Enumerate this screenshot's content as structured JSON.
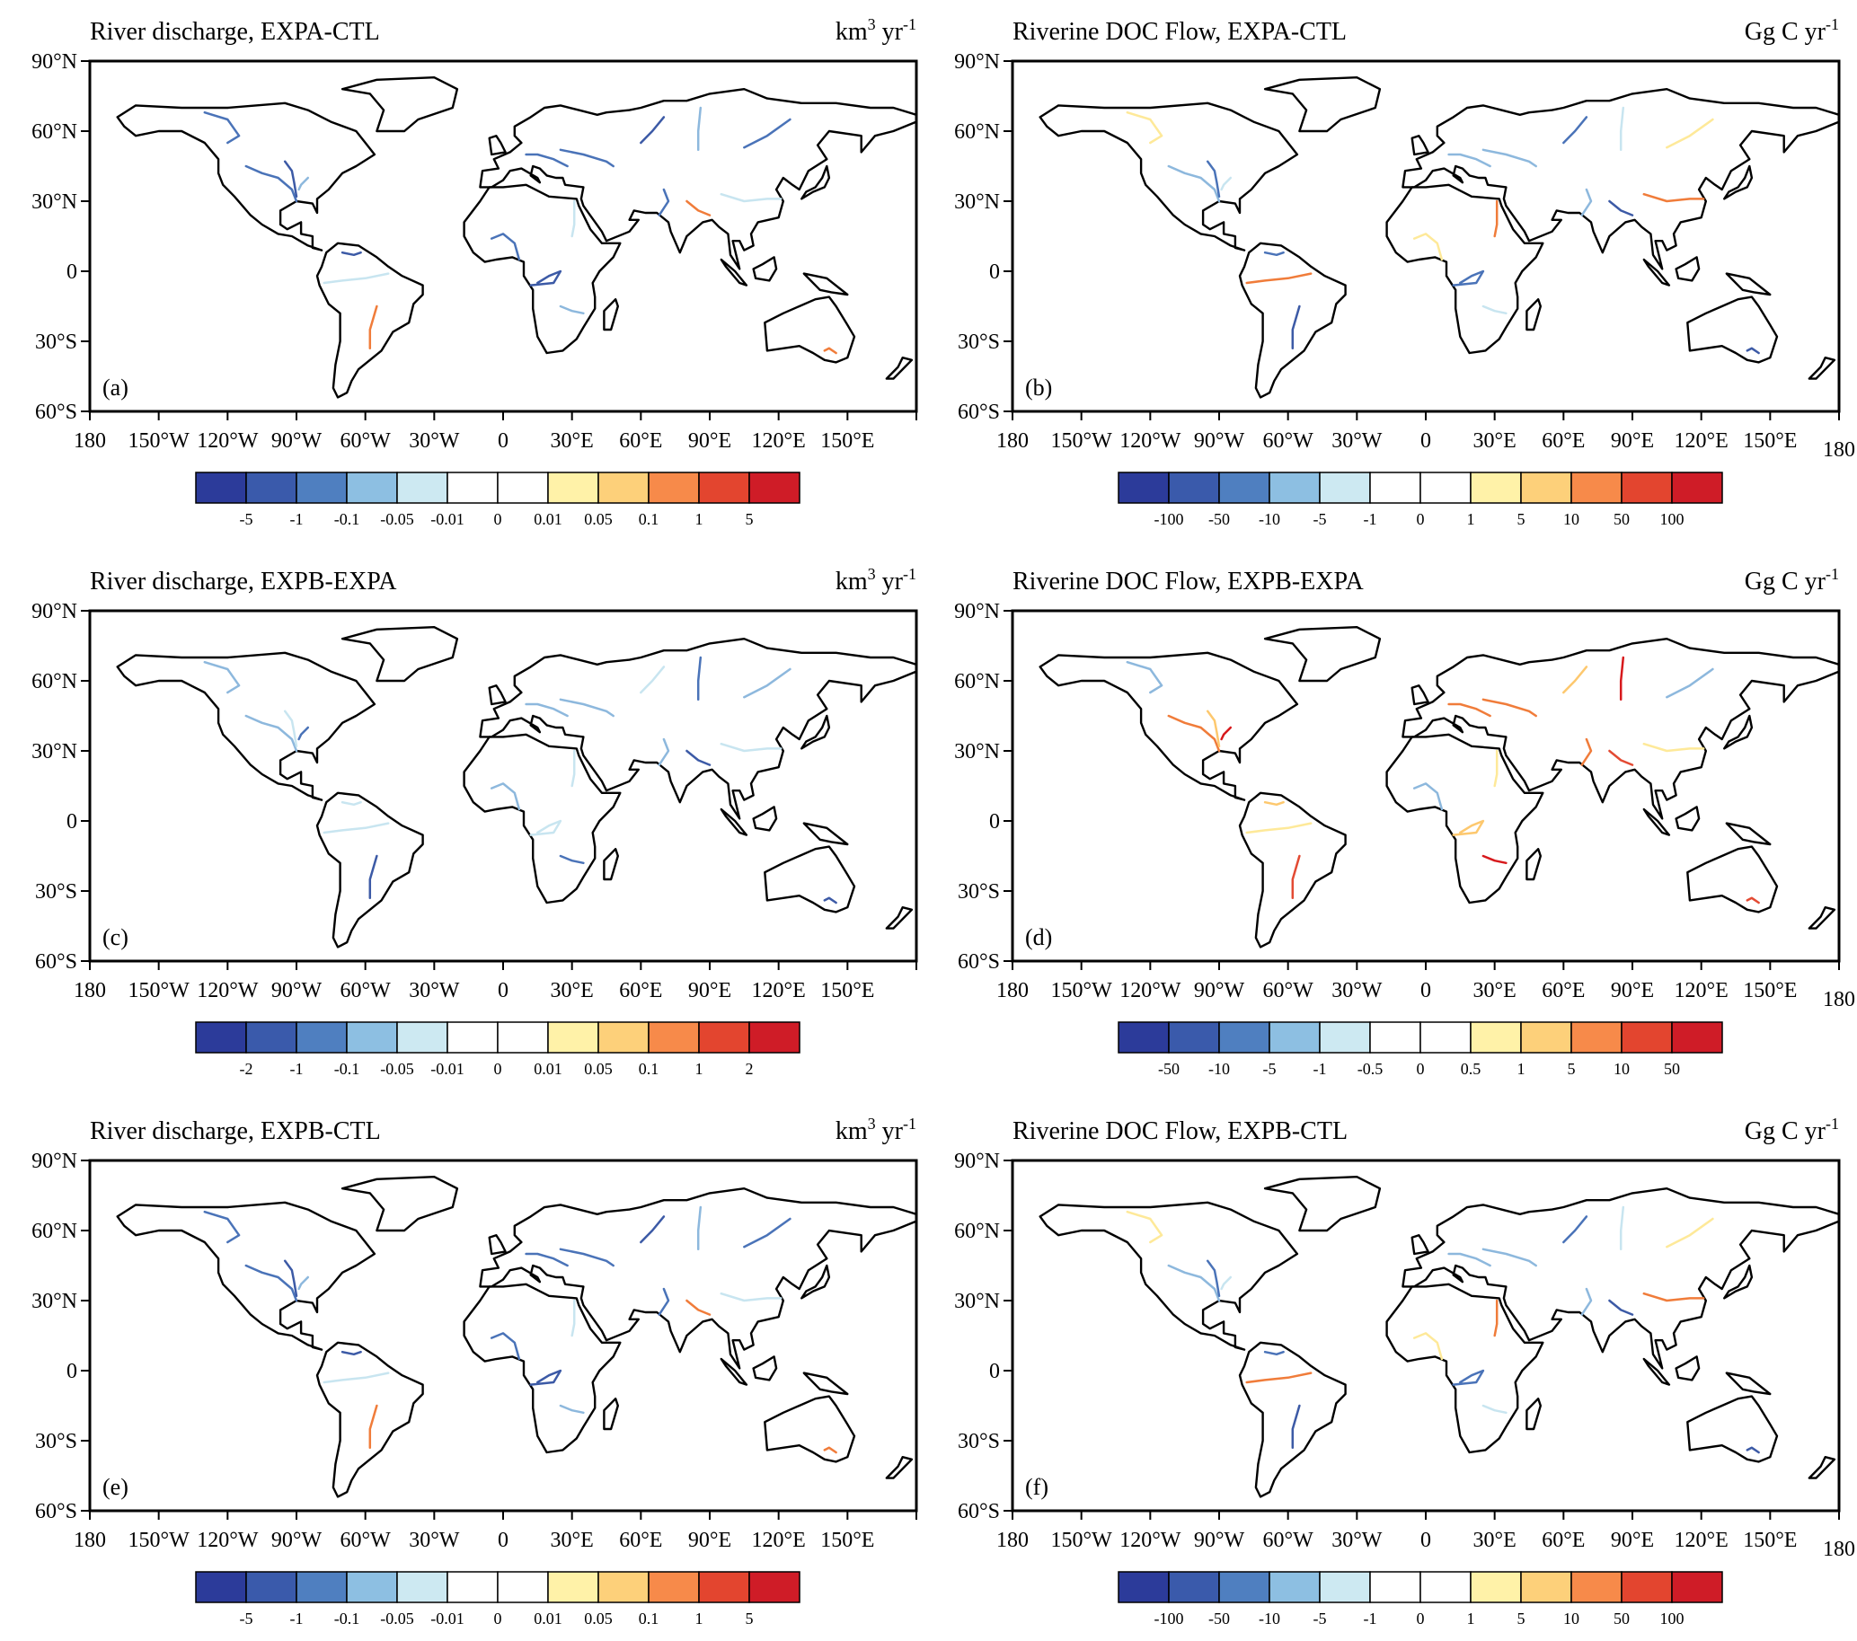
{
  "figure": {
    "panels": [
      {
        "id": "a",
        "letter": "(a)",
        "title": "River discharge, EXPA-CTL",
        "units": {
          "base": "km",
          "sup": "3",
          "rest": " yr",
          "sup2": "-1"
        },
        "lat_labels": [
          "90°N",
          "60°N",
          "30°N",
          "0",
          "30°S",
          "60°S"
        ],
        "lon_labels": [
          "180",
          "150°W",
          "120°W",
          "90°W",
          "60°W",
          "30°W",
          "0",
          "30°E",
          "60°E",
          "90°E",
          "120°E",
          "150°E"
        ],
        "colorbar_labels": [
          "-5",
          "-1",
          "-0.1",
          "-0.05",
          "-0.01",
          "0",
          "0.01",
          "0.05",
          "0.1",
          "1",
          "5"
        ],
        "river_colors": [
          "#4a73b8",
          "#3c5aa6",
          "#8db8dd",
          "#4a73b8",
          "#c8e5f0",
          "#f07c3a"
        ]
      },
      {
        "id": "b",
        "letter": "(b)",
        "title": "Riverine DOC Flow, EXPA-CTL",
        "units": {
          "base": "Gg C yr",
          "sup": "-1",
          "rest": "",
          "sup2": ""
        },
        "lat_labels": [
          "90°N",
          "60°N",
          "30°N",
          "0",
          "30°S",
          "60°S"
        ],
        "lon_labels": [
          "180",
          "150°W",
          "120°W",
          "90°W",
          "60°W",
          "30°W",
          "0",
          "30°E",
          "60°E",
          "90°E",
          "120°E",
          "150°E",
          "180"
        ],
        "colorbar_labels": [
          "-100",
          "-50",
          "-10",
          "-5",
          "-1",
          "0",
          "1",
          "5",
          "10",
          "50",
          "100"
        ],
        "river_colors": [
          "#8db8dd",
          "#4a73b8",
          "#c8e5f0",
          "#fee999",
          "#f07c3a",
          "#3c5aa6"
        ]
      },
      {
        "id": "c",
        "letter": "(c)",
        "title": "River discharge, EXPB-EXPA",
        "units": {
          "base": "km",
          "sup": "3",
          "rest": " yr",
          "sup2": "-1"
        },
        "lat_labels": [
          "90°N",
          "60°N",
          "30°N",
          "0",
          "30°S",
          "60°S"
        ],
        "lon_labels": [
          "180",
          "150°W",
          "120°W",
          "90°W",
          "60°W",
          "30°W",
          "0",
          "30°E",
          "60°E",
          "90°E",
          "120°E",
          "150°E"
        ],
        "colorbar_labels": [
          "-2",
          "-1",
          "-0.1",
          "-0.05",
          "-0.01",
          "0",
          "0.01",
          "0.05",
          "0.1",
          "1",
          "2"
        ],
        "river_colors": [
          "#8db8dd",
          "#c8e5f0",
          "#4a73b8",
          "#8db8dd",
          "#c8e5f0",
          "#3c5aa6"
        ]
      },
      {
        "id": "d",
        "letter": "(d)",
        "title": "Riverine DOC Flow, EXPB-EXPA",
        "units": {
          "base": "Gg C yr",
          "sup": "-1",
          "rest": "",
          "sup2": ""
        },
        "lat_labels": [
          "90°N",
          "60°N",
          "30°N",
          "0",
          "30°S",
          "60°S"
        ],
        "lon_labels": [
          "180",
          "150°W",
          "120°W",
          "90°W",
          "60°W",
          "30°W",
          "0",
          "30°E",
          "60°E",
          "90°E",
          "120°E",
          "150°E",
          "180"
        ],
        "colorbar_labels": [
          "-50",
          "-10",
          "-5",
          "-1",
          "-0.5",
          "0",
          "0.5",
          "1",
          "5",
          "10",
          "50"
        ],
        "river_colors": [
          "#f07c3a",
          "#fdc86e",
          "#d7191c",
          "#8db8dd",
          "#fee999",
          "#e34a33"
        ]
      },
      {
        "id": "e",
        "letter": "(e)",
        "title": "River discharge, EXPB-CTL",
        "units": {
          "base": "km",
          "sup": "3",
          "rest": " yr",
          "sup2": "-1"
        },
        "lat_labels": [
          "90°N",
          "60°N",
          "30°N",
          "0",
          "30°S",
          "60°S"
        ],
        "lon_labels": [
          "180",
          "150°W",
          "120°W",
          "90°W",
          "60°W",
          "30°W",
          "0",
          "30°E",
          "60°E",
          "90°E",
          "120°E",
          "150°E"
        ],
        "colorbar_labels": [
          "-5",
          "-1",
          "-0.1",
          "-0.05",
          "-0.01",
          "0",
          "0.01",
          "0.05",
          "0.1",
          "1",
          "5"
        ],
        "river_colors": [
          "#4a73b8",
          "#3c5aa6",
          "#8db8dd",
          "#4a73b8",
          "#c8e5f0",
          "#f07c3a"
        ]
      },
      {
        "id": "f",
        "letter": "(f)",
        "title": "Riverine DOC Flow, EXPB-CTL",
        "units": {
          "base": "Gg C yr",
          "sup": "-1",
          "rest": "",
          "sup2": ""
        },
        "lat_labels": [
          "90°N",
          "60°N",
          "30°N",
          "0",
          "30°S",
          "60°S"
        ],
        "lon_labels": [
          "180",
          "150°W",
          "120°W",
          "90°W",
          "60°W",
          "30°W",
          "0",
          "30°E",
          "60°E",
          "90°E",
          "120°E",
          "150°E",
          "180"
        ],
        "colorbar_labels": [
          "-100",
          "-50",
          "-10",
          "-5",
          "-1",
          "0",
          "1",
          "5",
          "10",
          "50",
          "100"
        ],
        "river_colors": [
          "#8db8dd",
          "#4a73b8",
          "#c8e5f0",
          "#fee999",
          "#f07c3a",
          "#3c5aa6"
        ]
      }
    ],
    "colorbar_colors": [
      "#2c3b9a",
      "#3a5aab",
      "#4f7fc0",
      "#8dbfe2",
      "#cde9f2",
      "#ffffff",
      "#ffffff",
      "#fff2a8",
      "#fdd07a",
      "#f78a4a",
      "#e3452f",
      "#cf1c27"
    ]
  }
}
